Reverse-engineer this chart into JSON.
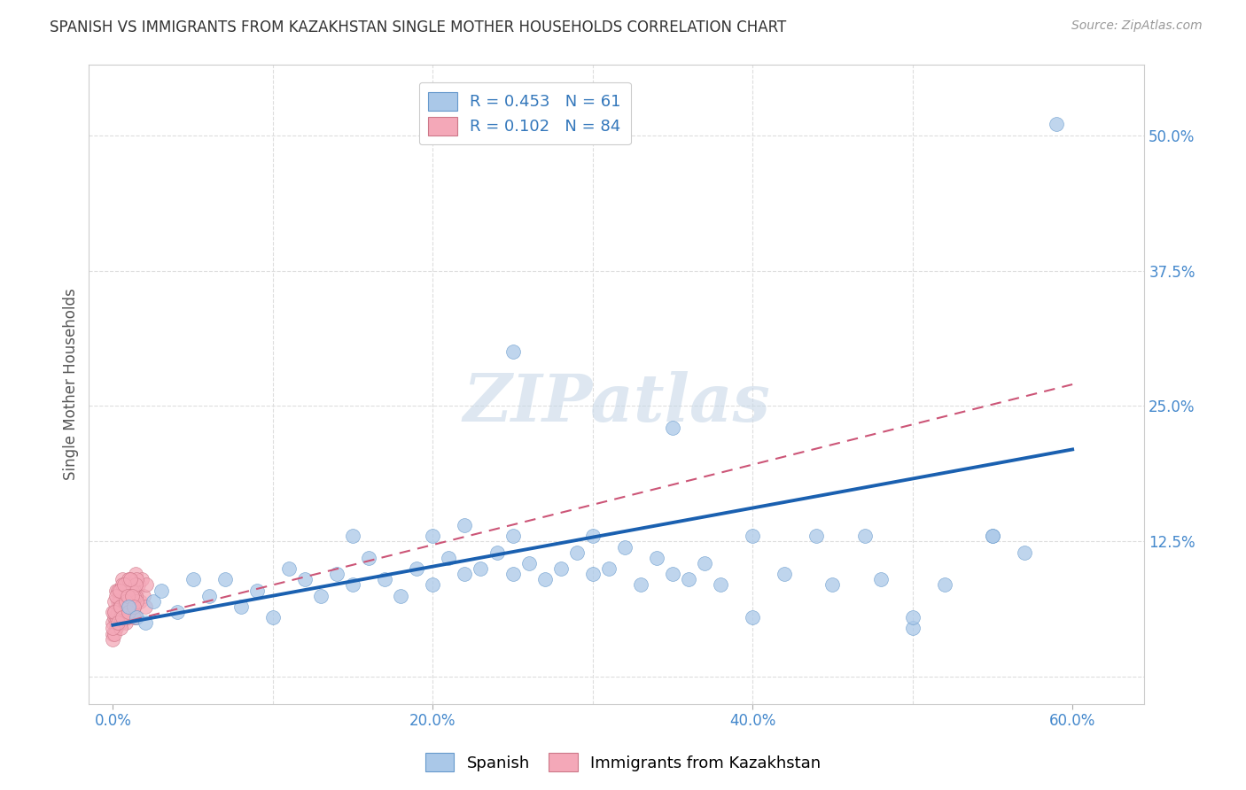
{
  "title": "SPANISH VS IMMIGRANTS FROM KAZAKHSTAN SINGLE MOTHER HOUSEHOLDS CORRELATION CHART",
  "source": "Source: ZipAtlas.com",
  "ylabel": "Single Mother Households",
  "xtick_vals": [
    0.0,
    0.2,
    0.4,
    0.6
  ],
  "xtick_labels": [
    "0.0%",
    "20.0%",
    "40.0%",
    "60.0%"
  ],
  "ytick_vals": [
    0.0,
    0.125,
    0.25,
    0.375,
    0.5
  ],
  "ytick_labels": [
    "",
    "12.5%",
    "25.0%",
    "37.5%",
    "50.0%"
  ],
  "xlim": [
    -0.015,
    0.645
  ],
  "ylim": [
    -0.025,
    0.565
  ],
  "blue_face": "#aac8e8",
  "blue_edge": "#6699cc",
  "pink_face": "#f4a8b8",
  "pink_edge": "#cc7788",
  "trendline_blue_color": "#1a60b0",
  "trendline_pink_color": "#cc5577",
  "grid_color": "#dddddd",
  "watermark_color": "#c8d8e8",
  "title_color": "#333333",
  "source_color": "#999999",
  "tick_label_color": "#4488cc",
  "ylabel_color": "#555555",
  "blue_trendline_start_y": 0.048,
  "blue_trendline_end_y": 0.21,
  "pink_trendline_start_y": 0.048,
  "pink_trendline_end_y": 0.27,
  "legend1_r": "0.453",
  "legend1_n": "61",
  "legend2_r": "0.102",
  "legend2_n": "84",
  "spanish_points": [
    [
      0.01,
      0.065
    ],
    [
      0.015,
      0.055
    ],
    [
      0.02,
      0.05
    ],
    [
      0.025,
      0.07
    ],
    [
      0.03,
      0.08
    ],
    [
      0.04,
      0.06
    ],
    [
      0.05,
      0.09
    ],
    [
      0.06,
      0.075
    ],
    [
      0.07,
      0.09
    ],
    [
      0.08,
      0.065
    ],
    [
      0.09,
      0.08
    ],
    [
      0.1,
      0.055
    ],
    [
      0.11,
      0.1
    ],
    [
      0.12,
      0.09
    ],
    [
      0.13,
      0.075
    ],
    [
      0.14,
      0.095
    ],
    [
      0.15,
      0.085
    ],
    [
      0.15,
      0.13
    ],
    [
      0.16,
      0.11
    ],
    [
      0.17,
      0.09
    ],
    [
      0.18,
      0.075
    ],
    [
      0.19,
      0.1
    ],
    [
      0.2,
      0.085
    ],
    [
      0.2,
      0.13
    ],
    [
      0.21,
      0.11
    ],
    [
      0.22,
      0.095
    ],
    [
      0.22,
      0.14
    ],
    [
      0.23,
      0.1
    ],
    [
      0.24,
      0.115
    ],
    [
      0.25,
      0.095
    ],
    [
      0.25,
      0.13
    ],
    [
      0.26,
      0.105
    ],
    [
      0.27,
      0.09
    ],
    [
      0.28,
      0.1
    ],
    [
      0.29,
      0.115
    ],
    [
      0.3,
      0.095
    ],
    [
      0.3,
      0.13
    ],
    [
      0.31,
      0.1
    ],
    [
      0.32,
      0.12
    ],
    [
      0.33,
      0.085
    ],
    [
      0.34,
      0.11
    ],
    [
      0.35,
      0.095
    ],
    [
      0.36,
      0.09
    ],
    [
      0.37,
      0.105
    ],
    [
      0.38,
      0.085
    ],
    [
      0.4,
      0.13
    ],
    [
      0.4,
      0.055
    ],
    [
      0.42,
      0.095
    ],
    [
      0.44,
      0.13
    ],
    [
      0.45,
      0.085
    ],
    [
      0.47,
      0.13
    ],
    [
      0.48,
      0.09
    ],
    [
      0.5,
      0.045
    ],
    [
      0.5,
      0.055
    ],
    [
      0.52,
      0.085
    ],
    [
      0.55,
      0.13
    ],
    [
      0.55,
      0.13
    ],
    [
      0.57,
      0.115
    ],
    [
      0.59,
      0.51
    ],
    [
      0.25,
      0.3
    ],
    [
      0.35,
      0.23
    ]
  ],
  "kazakh_points": [
    [
      0.0,
      0.05
    ],
    [
      0.001,
      0.06
    ],
    [
      0.002,
      0.045
    ],
    [
      0.003,
      0.07
    ],
    [
      0.004,
      0.055
    ],
    [
      0.005,
      0.06
    ],
    [
      0.006,
      0.075
    ],
    [
      0.007,
      0.065
    ],
    [
      0.008,
      0.05
    ],
    [
      0.009,
      0.07
    ],
    [
      0.01,
      0.065
    ],
    [
      0.01,
      0.08
    ],
    [
      0.011,
      0.09
    ],
    [
      0.012,
      0.075
    ],
    [
      0.013,
      0.065
    ],
    [
      0.014,
      0.095
    ],
    [
      0.015,
      0.08
    ],
    [
      0.016,
      0.085
    ],
    [
      0.017,
      0.07
    ],
    [
      0.018,
      0.09
    ],
    [
      0.019,
      0.075
    ],
    [
      0.02,
      0.065
    ],
    [
      0.021,
      0.085
    ],
    [
      0.0,
      0.04
    ],
    [
      0.001,
      0.055
    ],
    [
      0.002,
      0.08
    ],
    [
      0.003,
      0.065
    ],
    [
      0.004,
      0.075
    ],
    [
      0.005,
      0.05
    ],
    [
      0.006,
      0.09
    ],
    [
      0.007,
      0.06
    ],
    [
      0.008,
      0.07
    ],
    [
      0.009,
      0.055
    ],
    [
      0.01,
      0.08
    ],
    [
      0.011,
      0.085
    ],
    [
      0.012,
      0.07
    ],
    [
      0.013,
      0.065
    ],
    [
      0.014,
      0.075
    ],
    [
      0.0,
      0.035
    ],
    [
      0.001,
      0.04
    ],
    [
      0.002,
      0.055
    ],
    [
      0.003,
      0.06
    ],
    [
      0.004,
      0.07
    ],
    [
      0.005,
      0.045
    ],
    [
      0.006,
      0.065
    ],
    [
      0.007,
      0.075
    ],
    [
      0.008,
      0.085
    ],
    [
      0.009,
      0.07
    ],
    [
      0.01,
      0.06
    ],
    [
      0.011,
      0.08
    ],
    [
      0.012,
      0.065
    ],
    [
      0.013,
      0.075
    ],
    [
      0.014,
      0.055
    ],
    [
      0.015,
      0.09
    ],
    [
      0.0,
      0.06
    ],
    [
      0.001,
      0.07
    ],
    [
      0.002,
      0.05
    ],
    [
      0.003,
      0.08
    ],
    [
      0.004,
      0.065
    ],
    [
      0.005,
      0.055
    ],
    [
      0.006,
      0.085
    ],
    [
      0.007,
      0.07
    ],
    [
      0.008,
      0.075
    ],
    [
      0.009,
      0.06
    ],
    [
      0.01,
      0.09
    ],
    [
      0.011,
      0.065
    ],
    [
      0.012,
      0.08
    ],
    [
      0.013,
      0.055
    ],
    [
      0.014,
      0.085
    ],
    [
      0.015,
      0.07
    ],
    [
      0.0,
      0.045
    ],
    [
      0.001,
      0.06
    ],
    [
      0.002,
      0.075
    ],
    [
      0.003,
      0.05
    ],
    [
      0.004,
      0.08
    ],
    [
      0.005,
      0.065
    ],
    [
      0.006,
      0.055
    ],
    [
      0.007,
      0.085
    ],
    [
      0.008,
      0.07
    ],
    [
      0.009,
      0.075
    ],
    [
      0.01,
      0.06
    ],
    [
      0.011,
      0.09
    ],
    [
      0.012,
      0.075
    ],
    [
      0.013,
      0.065
    ]
  ]
}
